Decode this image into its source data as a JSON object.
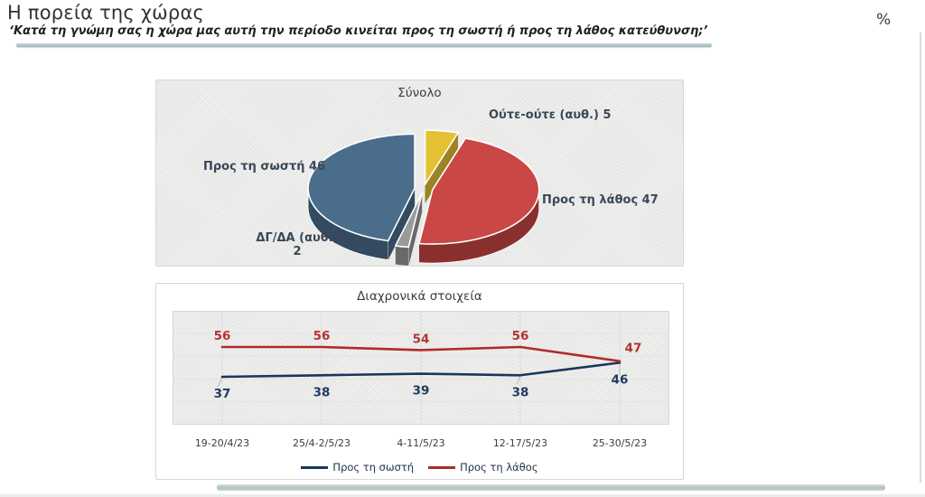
{
  "header": {
    "title": "Η πορεία της χώρας",
    "subtitle": "‘Κατά τη γνώμη σας η χώρα μας αυτή την περίοδο κινείται προς τη σωστή ή προς τη λάθος κατεύθυνση;’",
    "unit_label": "%"
  },
  "chart_data": [
    {
      "type": "pie",
      "title": "Σύνολο",
      "style": "3d-exploded",
      "start_angle_deg": 0,
      "direction": "clockwise",
      "slices": [
        {
          "label": "Ούτε-ούτε (αυθ.)",
          "value": 5,
          "color": "#e4c134"
        },
        {
          "label": "Προς τη λάθος",
          "value": 47,
          "color": "#c94744"
        },
        {
          "label": "ΔΓ/ΔΑ (αυθ.)",
          "value": 2,
          "color": "#9a9a9a"
        },
        {
          "label": "Προς τη σωστή",
          "value": 46,
          "color": "#4b6d8c"
        }
      ]
    },
    {
      "type": "line",
      "title": "Διαχρονικά στοιχεία",
      "categories": [
        "19-20/4/23",
        "25/4-2/5/23",
        "4-11/5/23",
        "12-17/5/23",
        "25-30/5/23"
      ],
      "series": [
        {
          "name": "Προς τη σωστή",
          "values": [
            37,
            38,
            39,
            38,
            46
          ],
          "color": "#17375e",
          "label_color": "#1e3a5f"
        },
        {
          "name": "Προς τη λάθος",
          "values": [
            56,
            56,
            54,
            56,
            47
          ],
          "color": "#b02a28",
          "label_color": "#b33432"
        }
      ],
      "grid": true,
      "legend_position": "bottom",
      "data_labels": true
    }
  ],
  "accents": {
    "subtitle_underline": "#a9bfc7",
    "bottom_bar": "#b6c8c6",
    "panel_border": "#d7d7d7",
    "plot_background": "#f1f1f0"
  }
}
